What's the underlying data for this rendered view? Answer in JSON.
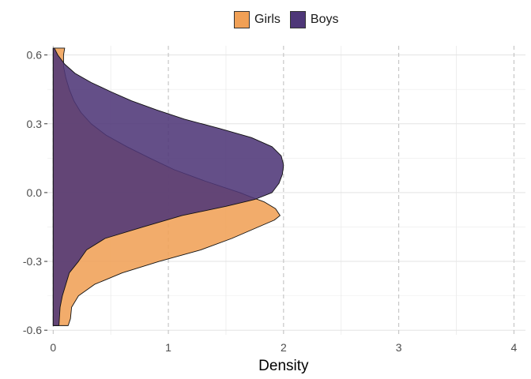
{
  "chart_data": {
    "type": "area",
    "orientation": "horizontal-density",
    "title": "",
    "xlabel": "Density",
    "ylabel": "",
    "xlim": [
      -0.05,
      4.1
    ],
    "ylim": [
      -0.62,
      0.64
    ],
    "x_ticks": [
      0,
      1,
      2,
      3,
      4
    ],
    "x_tick_labels": [
      "0",
      "1",
      "2",
      "3",
      "4"
    ],
    "y_ticks": [
      -0.6,
      -0.3,
      0.0,
      0.3,
      0.6
    ],
    "y_tick_labels": [
      "-0.6",
      "-0.3",
      "0.0",
      "0.3",
      "0.6"
    ],
    "grid": true,
    "legend_position": "top",
    "series": [
      {
        "name": "Girls",
        "color": "#F0A056",
        "points": [
          {
            "y": -0.58,
            "density": 0.13
          },
          {
            "y": -0.55,
            "density": 0.15
          },
          {
            "y": -0.5,
            "density": 0.16
          },
          {
            "y": -0.45,
            "density": 0.22
          },
          {
            "y": -0.4,
            "density": 0.36
          },
          {
            "y": -0.35,
            "density": 0.6
          },
          {
            "y": -0.3,
            "density": 0.92
          },
          {
            "y": -0.25,
            "density": 1.28
          },
          {
            "y": -0.2,
            "density": 1.55
          },
          {
            "y": -0.15,
            "density": 1.78
          },
          {
            "y": -0.12,
            "density": 1.92
          },
          {
            "y": -0.1,
            "density": 1.97
          },
          {
            "y": -0.07,
            "density": 1.93
          },
          {
            "y": -0.04,
            "density": 1.83
          },
          {
            "y": -0.02,
            "density": 1.72
          },
          {
            "y": 0.0,
            "density": 1.62
          },
          {
            "y": 0.05,
            "density": 1.32
          },
          {
            "y": 0.1,
            "density": 1.05
          },
          {
            "y": 0.15,
            "density": 0.84
          },
          {
            "y": 0.2,
            "density": 0.64
          },
          {
            "y": 0.25,
            "density": 0.46
          },
          {
            "y": 0.3,
            "density": 0.33
          },
          {
            "y": 0.35,
            "density": 0.24
          },
          {
            "y": 0.4,
            "density": 0.18
          },
          {
            "y": 0.45,
            "density": 0.14
          },
          {
            "y": 0.5,
            "density": 0.11
          },
          {
            "y": 0.55,
            "density": 0.09
          },
          {
            "y": 0.6,
            "density": 0.09
          },
          {
            "y": 0.63,
            "density": 0.1
          }
        ]
      },
      {
        "name": "Boys",
        "color": "#4E3778",
        "points": [
          {
            "y": -0.58,
            "density": 0.05
          },
          {
            "y": -0.5,
            "density": 0.06
          },
          {
            "y": -0.45,
            "density": 0.08
          },
          {
            "y": -0.4,
            "density": 0.11
          },
          {
            "y": -0.35,
            "density": 0.14
          },
          {
            "y": -0.3,
            "density": 0.22
          },
          {
            "y": -0.25,
            "density": 0.29
          },
          {
            "y": -0.2,
            "density": 0.45
          },
          {
            "y": -0.15,
            "density": 0.78
          },
          {
            "y": -0.1,
            "density": 1.12
          },
          {
            "y": -0.06,
            "density": 1.5
          },
          {
            "y": -0.03,
            "density": 1.75
          },
          {
            "y": 0.0,
            "density": 1.9
          },
          {
            "y": 0.04,
            "density": 1.96
          },
          {
            "y": 0.08,
            "density": 1.99
          },
          {
            "y": 0.12,
            "density": 2.0
          },
          {
            "y": 0.16,
            "density": 1.98
          },
          {
            "y": 0.2,
            "density": 1.9
          },
          {
            "y": 0.24,
            "density": 1.72
          },
          {
            "y": 0.28,
            "density": 1.44
          },
          {
            "y": 0.32,
            "density": 1.14
          },
          {
            "y": 0.36,
            "density": 0.9
          },
          {
            "y": 0.4,
            "density": 0.68
          },
          {
            "y": 0.44,
            "density": 0.5
          },
          {
            "y": 0.48,
            "density": 0.33
          },
          {
            "y": 0.52,
            "density": 0.19
          },
          {
            "y": 0.56,
            "density": 0.1
          },
          {
            "y": 0.6,
            "density": 0.04
          },
          {
            "y": 0.63,
            "density": 0.01
          }
        ]
      }
    ]
  }
}
